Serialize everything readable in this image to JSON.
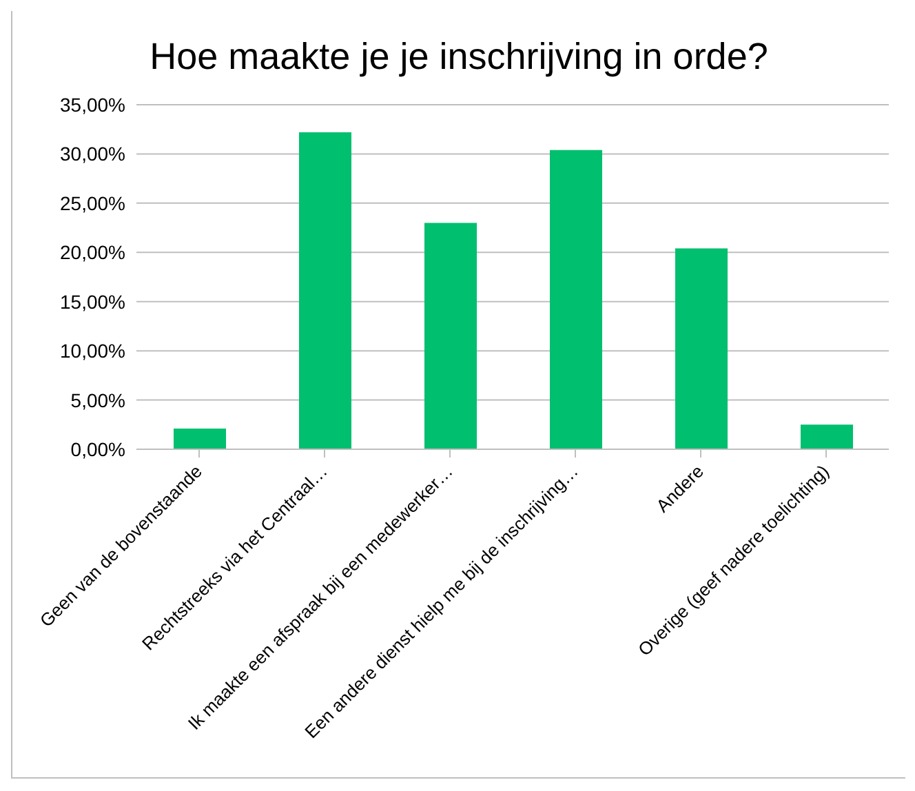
{
  "chart_data": {
    "type": "bar",
    "title": "Hoe maakte je je inschrijving in orde?",
    "categories": [
      "Geen van de bovenstaande",
      "Rechtstreeks via het Centraal…",
      "Ik maakte een afspraak bij een medewerker…",
      "Een andere dienst hielp me bij de inschrijving…",
      "Andere",
      "Overige (geef nadere toelichting)"
    ],
    "values": [
      2.1,
      32.2,
      23.0,
      30.4,
      20.4,
      2.5
    ],
    "color": "#00bf6f",
    "ylim": [
      0,
      35
    ],
    "yticks": [
      {
        "value": 0,
        "label": "0,00%"
      },
      {
        "value": 5,
        "label": "5,00%"
      },
      {
        "value": 10,
        "label": "10,00%"
      },
      {
        "value": 15,
        "label": "15,00%"
      },
      {
        "value": 20,
        "label": "20,00%"
      },
      {
        "value": 25,
        "label": "25,00%"
      },
      {
        "value": 30,
        "label": "30,00%"
      },
      {
        "value": 35,
        "label": "35,00%"
      }
    ],
    "grid": "y"
  }
}
